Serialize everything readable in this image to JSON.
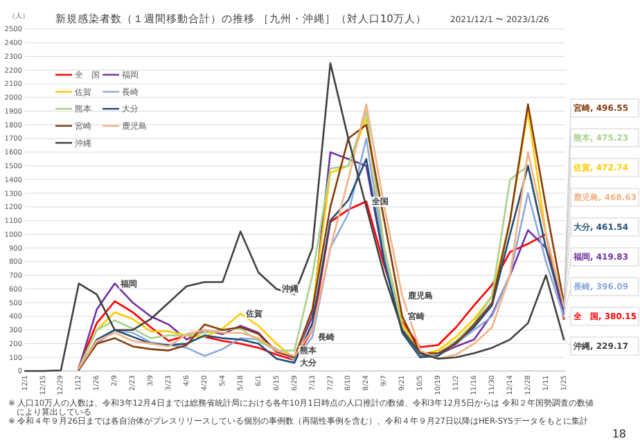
{
  "chart_data": {
    "type": "line",
    "title": "新規感染者数（１週間移動合計）の推移 ［九州・沖縄］（対人口10万人）",
    "subtitle": "2021/12/1 〜 2023/1/26",
    "ylabel": "（人）",
    "x": [
      "2021-12-01",
      "2021-12-15",
      "2021-12-29",
      "2022-01-12",
      "2022-01-26",
      "2022-02-09",
      "2022-02-23",
      "2022-03-09",
      "2022-03-23",
      "2022-04-06",
      "2022-04-20",
      "2022-05-04",
      "2022-05-18",
      "2022-06-01",
      "2022-06-15",
      "2022-06-29",
      "2022-07-13",
      "2022-07-27",
      "2022-08-10",
      "2022-08-24",
      "2022-09-07",
      "2022-09-21",
      "2022-10-05",
      "2022-10-19",
      "2022-11-02",
      "2022-11-16",
      "2022-11-30",
      "2022-12-14",
      "2022-12-28",
      "2023-01-11",
      "2023-01-25"
    ],
    "xlim": [
      "2021-12-01",
      "2023-01-26"
    ],
    "xticks": [
      {
        "value": "2021-12-01",
        "label": "12/1"
      },
      {
        "value": "2021-12-15",
        "label": "12/15"
      },
      {
        "value": "2021-12-29",
        "label": "12/29"
      },
      {
        "value": "2022-01-12",
        "label": "1/12"
      },
      {
        "value": "2022-01-26",
        "label": "1/26"
      },
      {
        "value": "2022-02-09",
        "label": "2/9"
      },
      {
        "value": "2022-02-23",
        "label": "2/23"
      },
      {
        "value": "2022-03-09",
        "label": "3/9"
      },
      {
        "value": "2022-03-23",
        "label": "3/23"
      },
      {
        "value": "2022-04-06",
        "label": "4/6"
      },
      {
        "value": "2022-04-20",
        "label": "4/20"
      },
      {
        "value": "2022-05-04",
        "label": "5/4"
      },
      {
        "value": "2022-05-18",
        "label": "5/18"
      },
      {
        "value": "2022-06-01",
        "label": "6/1"
      },
      {
        "value": "2022-06-15",
        "label": "6/15"
      },
      {
        "value": "2022-06-29",
        "label": "6/29"
      },
      {
        "value": "2022-07-13",
        "label": "7/13"
      },
      {
        "value": "2022-07-27",
        "label": "7/27"
      },
      {
        "value": "2022-08-10",
        "label": "8/10"
      },
      {
        "value": "2022-08-24",
        "label": "8/24"
      },
      {
        "value": "2022-09-07",
        "label": "9/7"
      },
      {
        "value": "2022-09-21",
        "label": "9/21"
      },
      {
        "value": "2022-10-05",
        "label": "10/5"
      },
      {
        "value": "2022-10-19",
        "label": "10/19"
      },
      {
        "value": "2022-11-02",
        "label": "11/2"
      },
      {
        "value": "2022-11-16",
        "label": "11/16"
      },
      {
        "value": "2022-11-30",
        "label": "11/30"
      },
      {
        "value": "2022-12-14",
        "label": "12/14"
      },
      {
        "value": "2022-12-28",
        "label": "12/28"
      },
      {
        "value": "2023-01-11",
        "label": "1/11"
      },
      {
        "value": "2023-01-25",
        "label": "1/25"
      }
    ],
    "ylim": [
      0,
      2500
    ],
    "yticks": [
      0,
      100,
      200,
      300,
      400,
      500,
      600,
      700,
      800,
      900,
      1000,
      1100,
      1200,
      1300,
      1400,
      1500,
      1600,
      1700,
      1800,
      1900,
      2000,
      2100,
      2200,
      2300,
      2400,
      2500
    ],
    "grid": "y",
    "legend": "top left",
    "marker": "none",
    "line_style": "solid",
    "series": [
      {
        "name": "全　国",
        "color": "#ff0000",
        "values": [
          null,
          null,
          null,
          30,
          350,
          510,
          430,
          320,
          220,
          260,
          250,
          220,
          200,
          170,
          120,
          80,
          300,
          1090,
          1180,
          1240,
          770,
          360,
          175,
          190,
          320,
          480,
          630,
          870,
          930,
          1000,
          380.15
        ],
        "value_labels": [
          null,
          null,
          null,
          null,
          null,
          null,
          null,
          null,
          null,
          null,
          null,
          null,
          null,
          null,
          null,
          null,
          null,
          null,
          null,
          null,
          null,
          null,
          null,
          null,
          null,
          null,
          null,
          null,
          null,
          null,
          "全　国, 380.15"
        ]
      },
      {
        "name": "福岡",
        "color": "#7030a0",
        "values": [
          null,
          null,
          null,
          20,
          450,
          640,
          500,
          400,
          340,
          230,
          300,
          270,
          330,
          280,
          140,
          100,
          400,
          1600,
          1550,
          1500,
          800,
          300,
          110,
          120,
          180,
          230,
          415,
          700,
          1030,
          900,
          419.83
        ],
        "value_labels": [
          null,
          null,
          null,
          null,
          null,
          null,
          null,
          null,
          null,
          null,
          null,
          null,
          null,
          null,
          null,
          null,
          null,
          null,
          null,
          null,
          null,
          null,
          null,
          null,
          null,
          null,
          null,
          null,
          null,
          null,
          "福岡, 419.83"
        ]
      },
      {
        "name": "佐賀",
        "color": "#ffcc00",
        "values": [
          null,
          null,
          null,
          20,
          300,
          430,
          380,
          290,
          290,
          260,
          250,
          310,
          420,
          330,
          200,
          90,
          450,
          1450,
          1500,
          1850,
          900,
          350,
          120,
          150,
          250,
          380,
          550,
          1100,
          1900,
          1000,
          472.74
        ],
        "value_labels": [
          null,
          null,
          null,
          null,
          null,
          null,
          null,
          null,
          null,
          null,
          null,
          null,
          null,
          null,
          null,
          null,
          null,
          null,
          null,
          null,
          null,
          null,
          null,
          null,
          null,
          null,
          null,
          null,
          null,
          null,
          "佐賀, 472.74"
        ]
      },
      {
        "name": "長崎",
        "color": "#8eaadb",
        "values": [
          null,
          null,
          null,
          10,
          200,
          300,
          280,
          210,
          190,
          170,
          110,
          160,
          240,
          230,
          160,
          80,
          250,
          900,
          1150,
          1700,
          850,
          300,
          100,
          120,
          200,
          300,
          400,
          700,
          1300,
          800,
          396.09
        ],
        "value_labels": [
          null,
          null,
          null,
          null,
          null,
          null,
          null,
          null,
          null,
          null,
          null,
          null,
          null,
          null,
          null,
          null,
          null,
          null,
          null,
          null,
          null,
          null,
          null,
          null,
          null,
          null,
          null,
          null,
          null,
          null,
          "長崎, 396.09"
        ]
      },
      {
        "name": "熊本",
        "color": "#a9d18e",
        "values": [
          null,
          null,
          null,
          20,
          300,
          370,
          310,
          240,
          260,
          260,
          280,
          300,
          310,
          220,
          150,
          150,
          700,
          1480,
          1500,
          1900,
          900,
          320,
          120,
          130,
          220,
          350,
          550,
          1400,
          1500,
          900,
          475.23
        ],
        "value_labels": [
          null,
          null,
          null,
          null,
          null,
          null,
          null,
          null,
          null,
          null,
          null,
          null,
          null,
          null,
          null,
          null,
          null,
          null,
          null,
          null,
          null,
          null,
          null,
          null,
          null,
          null,
          null,
          null,
          null,
          null,
          "熊本, 475.23"
        ]
      },
      {
        "name": "大分",
        "color": "#1f4e79",
        "values": [
          null,
          null,
          null,
          10,
          230,
          300,
          250,
          200,
          190,
          200,
          260,
          240,
          230,
          200,
          90,
          60,
          350,
          1100,
          1250,
          1550,
          800,
          280,
          100,
          110,
          210,
          320,
          480,
          1000,
          1500,
          900,
          461.54
        ],
        "value_labels": [
          null,
          null,
          null,
          null,
          null,
          null,
          null,
          null,
          null,
          null,
          null,
          null,
          null,
          null,
          null,
          null,
          null,
          null,
          null,
          null,
          null,
          null,
          null,
          null,
          null,
          null,
          null,
          null,
          null,
          null,
          "大分, 461.54"
        ]
      },
      {
        "name": "宮崎",
        "color": "#843c0c",
        "values": [
          null,
          null,
          null,
          10,
          200,
          240,
          180,
          160,
          150,
          190,
          340,
          300,
          320,
          270,
          140,
          100,
          450,
          1200,
          1700,
          1800,
          1100,
          400,
          130,
          130,
          200,
          340,
          500,
          1100,
          1950,
          1200,
          496.55
        ],
        "value_labels": [
          null,
          null,
          null,
          null,
          null,
          null,
          null,
          null,
          null,
          null,
          null,
          null,
          null,
          null,
          null,
          null,
          null,
          null,
          null,
          null,
          null,
          null,
          null,
          null,
          null,
          null,
          null,
          null,
          null,
          null,
          "宮崎, 496.55"
        ]
      },
      {
        "name": "鹿児島",
        "color": "#f4b183",
        "values": [
          null,
          null,
          null,
          20,
          220,
          280,
          220,
          200,
          180,
          270,
          300,
          280,
          280,
          240,
          150,
          110,
          300,
          900,
          1400,
          1950,
          1200,
          550,
          150,
          90,
          120,
          200,
          320,
          700,
          1600,
          1000,
          468.63
        ],
        "value_labels": [
          null,
          null,
          null,
          null,
          null,
          null,
          null,
          null,
          null,
          null,
          null,
          null,
          null,
          null,
          null,
          null,
          null,
          null,
          null,
          null,
          null,
          null,
          null,
          null,
          null,
          null,
          null,
          null,
          null,
          null,
          "鹿児島, 468.63"
        ]
      },
      {
        "name": "沖縄",
        "color": "#404040",
        "values": [
          0,
          0,
          5,
          640,
          560,
          300,
          300,
          380,
          500,
          620,
          650,
          650,
          1020,
          720,
          600,
          560,
          900,
          2250,
          1700,
          1200,
          700,
          300,
          130,
          90,
          100,
          130,
          170,
          230,
          350,
          700,
          229.17
        ],
        "value_labels": [
          null,
          null,
          null,
          null,
          null,
          null,
          null,
          null,
          null,
          null,
          null,
          null,
          null,
          null,
          null,
          null,
          null,
          null,
          null,
          null,
          null,
          null,
          null,
          null,
          null,
          null,
          null,
          null,
          null,
          null,
          "沖縄, 229.17"
        ]
      }
    ],
    "annotations": [
      {
        "text": "福岡",
        "x": "2022-02-09",
        "y": 640
      },
      {
        "text": "佐賀",
        "x": "2022-05-18",
        "y": 420
      },
      {
        "text": "熊本",
        "x": "2022-06-29",
        "y": 150
      },
      {
        "text": "沖縄",
        "x": "2022-06-15",
        "y": 600
      },
      {
        "text": "大分",
        "x": "2022-06-29",
        "y": 60
      },
      {
        "text": "長崎",
        "x": "2022-07-13",
        "y": 250
      },
      {
        "text": "全国",
        "x": "2022-08-24",
        "y": 1240
      },
      {
        "text": "鹿児島",
        "x": "2022-09-21",
        "y": 550
      },
      {
        "text": "宮崎",
        "x": "2022-09-21",
        "y": 400
      },
      "※ 人口10万人の人数は、令和3年12月4日までは総務省統計局における各年10月1日時点の人口推計の数値、令和3年12月5日からは 令和２年国勢調査の数値により算出している",
      "※ 令和４年９月26日までは各自治体がプレスリリースしている個別の事例数（再陽性事例を含む）、令和４年９月27日以降はHER-SYSデータをもとに集計",
      "18"
    ]
  }
}
